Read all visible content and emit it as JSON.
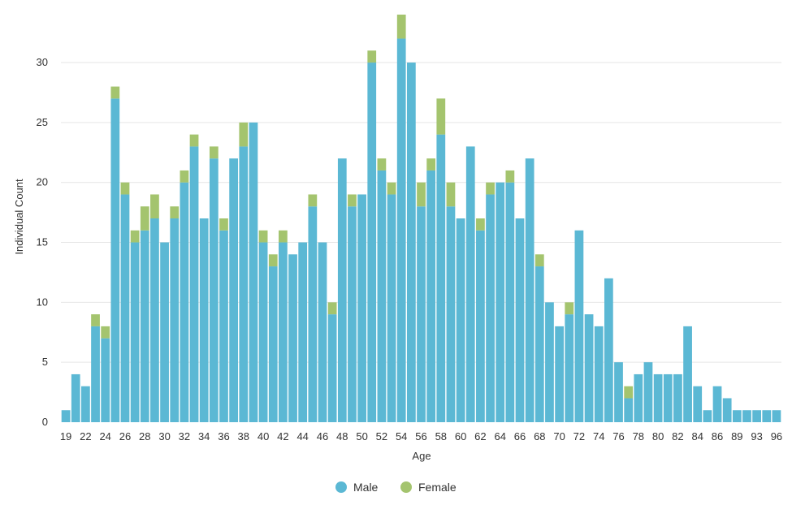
{
  "chart_data": {
    "type": "bar",
    "stacked": true,
    "title": "",
    "xlabel": "Age",
    "ylabel": "Individual Count",
    "ylim": [
      0,
      34
    ],
    "yticks": [
      0,
      5,
      10,
      15,
      20,
      25,
      30
    ],
    "grid": "horizontal",
    "legend_position": "bottom",
    "categories": [
      "19",
      "20",
      "22",
      "23",
      "24",
      "25",
      "26",
      "27",
      "28",
      "29",
      "30",
      "31",
      "32",
      "33",
      "34",
      "35",
      "36",
      "37",
      "38",
      "39",
      "40",
      "41",
      "42",
      "43",
      "44",
      "45",
      "46",
      "47",
      "48",
      "49",
      "50",
      "51",
      "52",
      "53",
      "54",
      "55",
      "56",
      "57",
      "58",
      "59",
      "60",
      "61",
      "62",
      "63",
      "64",
      "65",
      "66",
      "67",
      "68",
      "69",
      "70",
      "71",
      "72",
      "73",
      "74",
      "75",
      "76",
      "77",
      "78",
      "79",
      "80",
      "81",
      "82",
      "83",
      "84",
      "85",
      "86",
      "87",
      "89",
      "91",
      "93",
      "95",
      "96"
    ],
    "x_tick_labels": [
      "19",
      "22",
      "24",
      "26",
      "28",
      "30",
      "32",
      "34",
      "36",
      "38",
      "40",
      "42",
      "44",
      "46",
      "48",
      "50",
      "52",
      "54",
      "56",
      "58",
      "60",
      "62",
      "64",
      "66",
      "68",
      "70",
      "72",
      "74",
      "76",
      "78",
      "80",
      "82",
      "84",
      "86",
      "89",
      "93",
      "96"
    ],
    "series": [
      {
        "name": "Male",
        "color": "#5bb8d4",
        "values": [
          1,
          4,
          3,
          8,
          7,
          27,
          19,
          15,
          16,
          17,
          15,
          17,
          20,
          23,
          17,
          22,
          16,
          22,
          23,
          25,
          15,
          13,
          15,
          14,
          15,
          18,
          15,
          9,
          22,
          18,
          19,
          30,
          21,
          19,
          32,
          30,
          18,
          21,
          24,
          18,
          17,
          23,
          16,
          19,
          20,
          20,
          17,
          22,
          13,
          10,
          8,
          9,
          16,
          9,
          8,
          12,
          5,
          2,
          4,
          5,
          4,
          4,
          4,
          8,
          3,
          1,
          3,
          2,
          1,
          1,
          1,
          1,
          1
        ]
      },
      {
        "name": "Female",
        "color": "#a4c46e",
        "values": [
          0,
          0,
          0,
          1,
          1,
          1,
          1,
          1,
          2,
          2,
          0,
          1,
          1,
          1,
          0,
          1,
          1,
          0,
          2,
          0,
          1,
          1,
          1,
          0,
          0,
          1,
          0,
          1,
          0,
          1,
          0,
          1,
          1,
          1,
          2,
          0,
          2,
          1,
          3,
          2,
          0,
          0,
          1,
          1,
          0,
          1,
          0,
          0,
          1,
          0,
          0,
          1,
          0,
          0,
          0,
          0,
          0,
          1,
          0,
          0,
          0,
          0,
          0,
          0,
          0,
          0,
          0,
          0,
          0,
          0,
          0,
          0,
          0
        ]
      }
    ]
  },
  "legend": {
    "items": [
      {
        "label": "Male",
        "color": "#5bb8d4"
      },
      {
        "label": "Female",
        "color": "#a4c46e"
      }
    ]
  }
}
